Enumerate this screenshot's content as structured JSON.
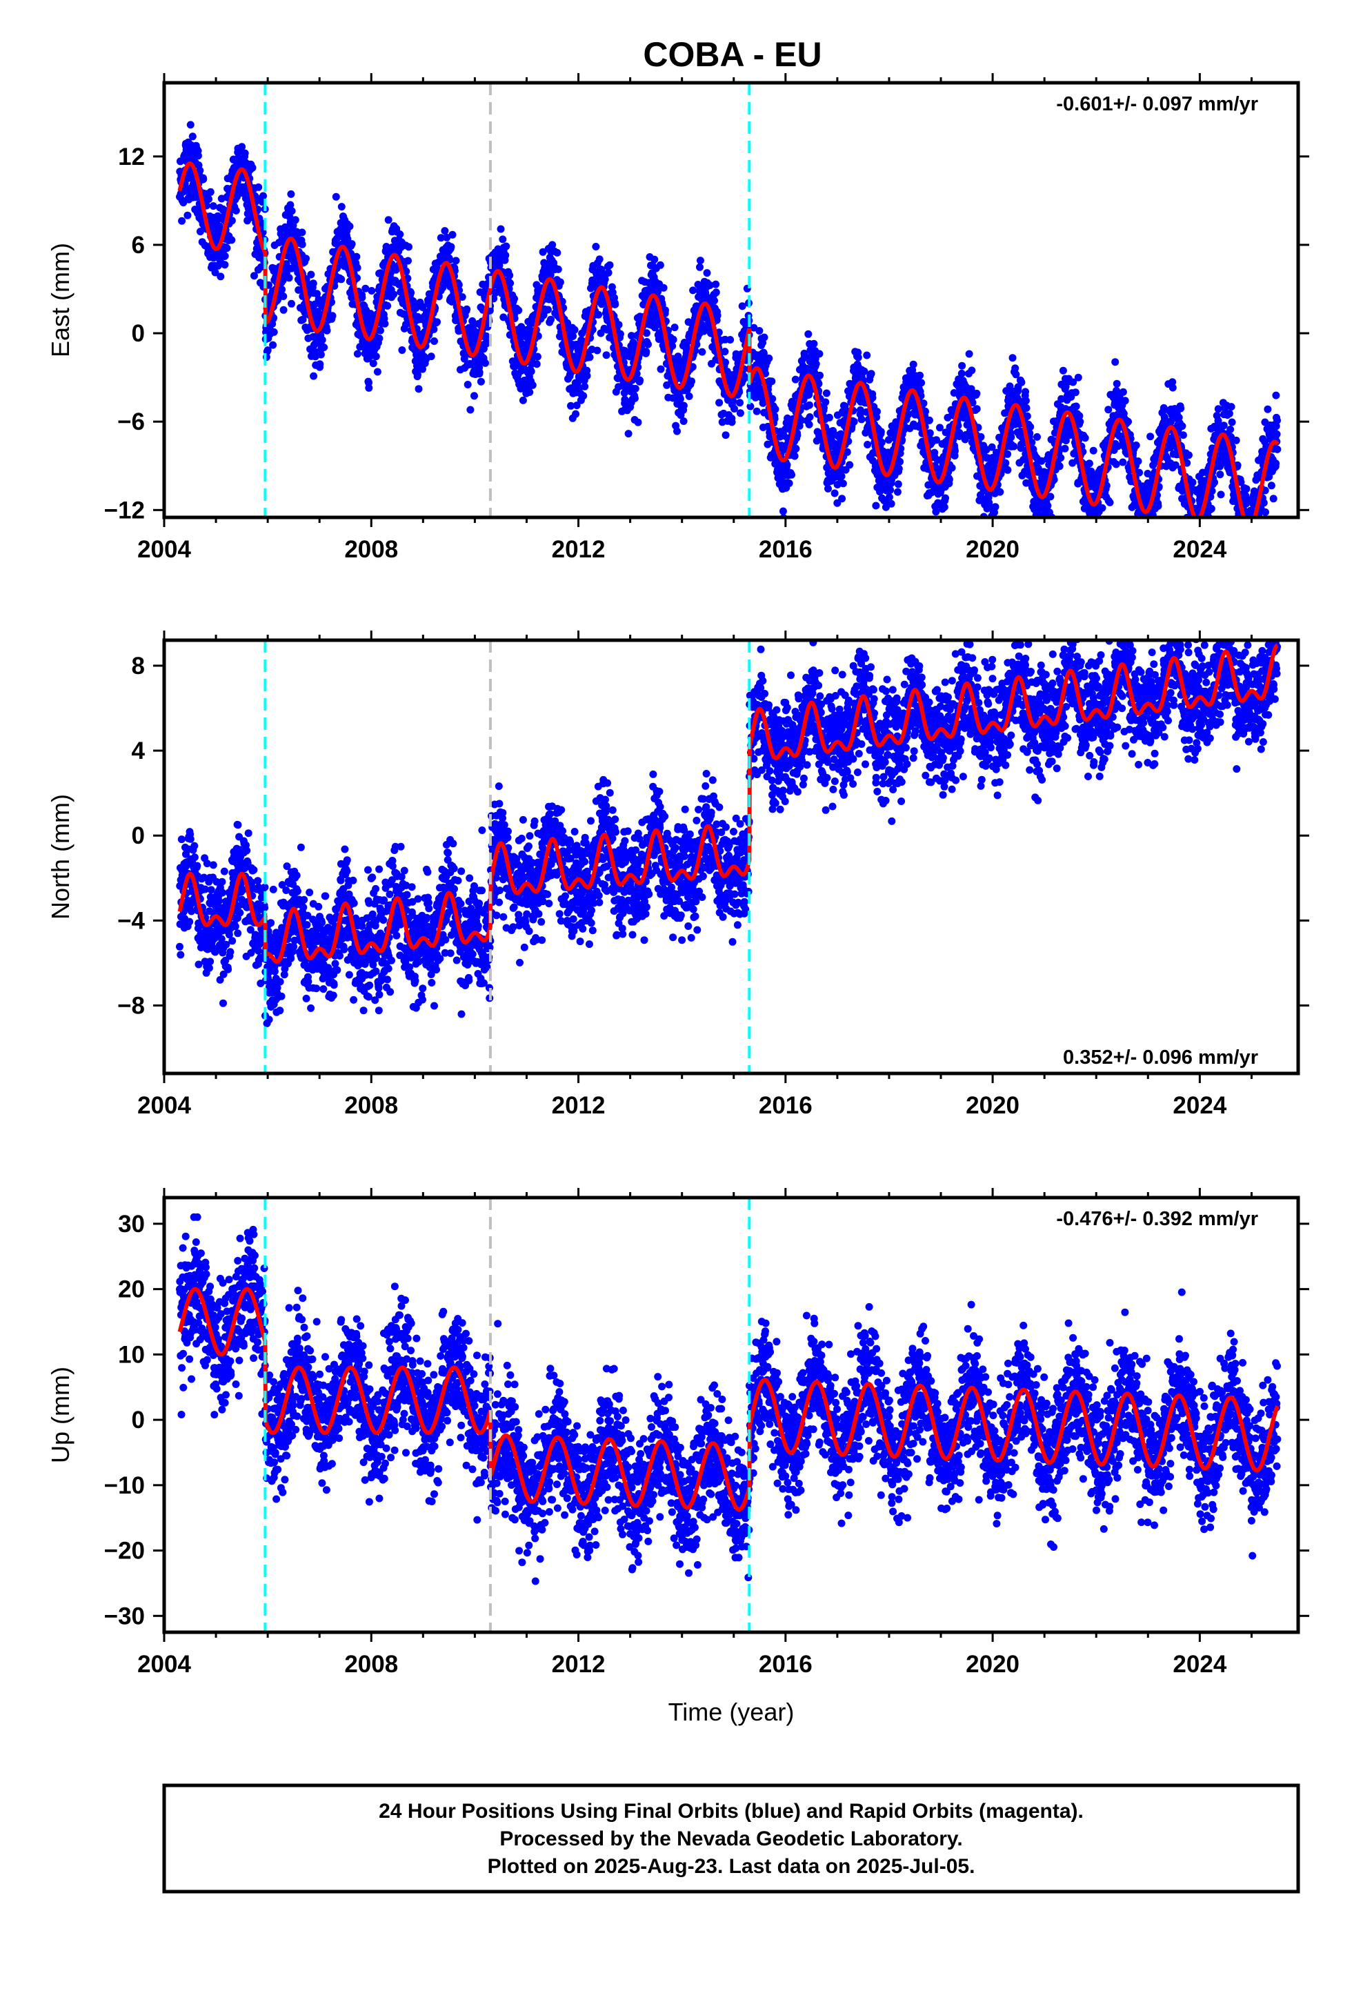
{
  "chart_title": "COBA - EU",
  "footer": {
    "line1": "24 Hour Positions Using Final Orbits (blue) and Rapid Orbits (magenta).",
    "line2": "Processed by the Nevada Geodetic Laboratory.",
    "line3": "Plotted on 2025-Aug-23. Last data on 2025-Jul-05."
  },
  "colors": {
    "data_points": "#0000ff",
    "model": "#ff0000",
    "equipment_change": "#00ffff",
    "other_event": "#c0c0c0"
  },
  "chart_data": [
    {
      "type": "scatter",
      "component": "east",
      "ylabel": "East (mm)",
      "xlabel": "",
      "xlim": [
        2004.0,
        2025.9
      ],
      "ylim": [
        -12.5,
        17.0
      ],
      "xticks": [
        2004,
        2008,
        2012,
        2016,
        2020,
        2024
      ],
      "yticks": [
        -12,
        -6,
        0,
        6,
        12
      ],
      "ytick_labels": [
        "−12",
        "−6",
        "0",
        "6",
        "12"
      ],
      "rate_label": "-0.601+/- 0.097 mm/yr",
      "rate_position": "top-right",
      "grid": false,
      "events": [
        {
          "year": 2005.95,
          "kind": "equipment_change"
        },
        {
          "year": 2010.3,
          "kind": "other_event"
        },
        {
          "year": 2015.3,
          "kind": "equipment_change"
        }
      ],
      "model": {
        "segments": [
          {
            "from": 2004.3,
            "to": 2005.95,
            "intercept": 8.8,
            "slope": -0.4,
            "amplitude": 2.8,
            "phase_peak": 0.5
          },
          {
            "from": 2005.95,
            "to": 2015.3,
            "intercept": 4.6,
            "slope": -0.55,
            "amplitude": 3.0,
            "phase_peak": 0.45
          },
          {
            "from": 2015.3,
            "to": 2025.5,
            "intercept": 0.2,
            "slope": -0.5,
            "amplitude": 3.0,
            "phase_peak": 0.45
          }
        ]
      },
      "scatter_sd": 1.3
    },
    {
      "type": "scatter",
      "component": "north",
      "ylabel": "North (mm)",
      "xlabel": "",
      "xlim": [
        2004.0,
        2025.9
      ],
      "ylim": [
        -11.2,
        9.2
      ],
      "xticks": [
        2004,
        2008,
        2012,
        2016,
        2020,
        2024
      ],
      "yticks": [
        -8,
        -4,
        0,
        4,
        8
      ],
      "ytick_labels": [
        "−8",
        "−4",
        "0",
        "4",
        "8"
      ],
      "rate_label": "0.352+/- 0.096 mm/yr",
      "rate_position": "bottom-right",
      "grid": false,
      "events": [
        {
          "year": 2005.95,
          "kind": "equipment_change"
        },
        {
          "year": 2010.3,
          "kind": "other_event"
        },
        {
          "year": 2015.3,
          "kind": "equipment_change"
        }
      ],
      "model": {
        "segments": [
          {
            "from": 2004.3,
            "to": 2005.95,
            "intercept": -3.4,
            "slope": 0.0,
            "amplitude": 1.0,
            "phase_peak": 0.5,
            "semi": 0.6
          },
          {
            "from": 2005.95,
            "to": 2010.3,
            "intercept": -5.6,
            "slope": 0.25,
            "amplitude": 1.0,
            "phase_peak": 0.5,
            "semi": 0.6
          },
          {
            "from": 2010.3,
            "to": 2015.3,
            "intercept": -3.2,
            "slope": 0.2,
            "amplitude": 1.0,
            "phase_peak": 0.5,
            "semi": 0.6
          },
          {
            "from": 2015.3,
            "to": 2025.5,
            "intercept": 1.0,
            "slope": 0.3,
            "amplitude": 1.0,
            "phase_peak": 0.5,
            "semi": 0.6
          }
        ]
      },
      "scatter_sd": 1.2
    },
    {
      "type": "scatter",
      "component": "up",
      "ylabel": "Up (mm)",
      "xlabel": "Time (year)",
      "xlim": [
        2004.0,
        2025.9
      ],
      "ylim": [
        -32.5,
        34.0
      ],
      "xticks": [
        2004,
        2008,
        2012,
        2016,
        2020,
        2024
      ],
      "yticks": [
        -30,
        -20,
        -10,
        0,
        10,
        20,
        30
      ],
      "ytick_labels": [
        "−30",
        "−20",
        "−10",
        "0",
        "10",
        "20",
        "30"
      ],
      "rate_label": "-0.476+/- 0.392 mm/yr",
      "rate_position": "top-right",
      "grid": false,
      "events": [
        {
          "year": 2005.95,
          "kind": "equipment_change"
        },
        {
          "year": 2010.3,
          "kind": "other_event"
        },
        {
          "year": 2015.3,
          "kind": "equipment_change"
        }
      ],
      "model": {
        "segments": [
          {
            "from": 2004.3,
            "to": 2005.95,
            "intercept": 15.0,
            "slope": 0.0,
            "amplitude": 5.0,
            "phase_peak": 0.6
          },
          {
            "from": 2005.95,
            "to": 2010.3,
            "intercept": 3.0,
            "slope": 0.0,
            "amplitude": 5.0,
            "phase_peak": 0.6
          },
          {
            "from": 2010.3,
            "to": 2015.3,
            "intercept": -5.5,
            "slope": -0.3,
            "amplitude": 5.0,
            "phase_peak": 0.6
          },
          {
            "from": 2015.3,
            "to": 2025.5,
            "intercept": 4.0,
            "slope": -0.3,
            "amplitude": 5.5,
            "phase_peak": 0.6
          }
        ]
      },
      "scatter_sd": 4.5
    }
  ]
}
